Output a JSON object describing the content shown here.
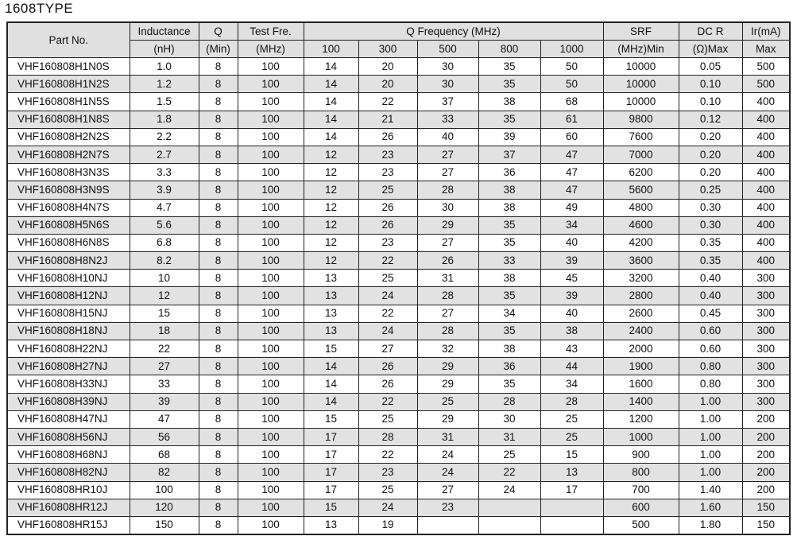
{
  "title": "1608TYPE",
  "headers": {
    "part_no": "Part No.",
    "inductance": [
      "Inductance",
      "(nH)"
    ],
    "q": [
      "Q",
      "(Min)"
    ],
    "test_freq": [
      "Test Fre.",
      "(MHz)"
    ],
    "q_frequency": "Q Frequency (MHz)",
    "q_freq_cols": [
      "100",
      "300",
      "500",
      "800",
      "1000"
    ],
    "srf": [
      "SRF",
      "(MHz)Min"
    ],
    "dcr": [
      "DC R",
      "(Ω)Max"
    ],
    "ir": [
      "Ir(mA)",
      "Max"
    ]
  },
  "rows": [
    [
      "VHF160808H1N0S",
      "1.0",
      "8",
      "100",
      "14",
      "20",
      "30",
      "35",
      "50",
      "10000",
      "0.05",
      "500"
    ],
    [
      "VHF160808H1N2S",
      "1.2",
      "8",
      "100",
      "14",
      "20",
      "30",
      "35",
      "50",
      "10000",
      "0.10",
      "500"
    ],
    [
      "VHF160808H1N5S",
      "1.5",
      "8",
      "100",
      "14",
      "22",
      "37",
      "38",
      "68",
      "10000",
      "0.10",
      "400"
    ],
    [
      "VHF160808H1N8S",
      "1.8",
      "8",
      "100",
      "14",
      "21",
      "33",
      "35",
      "61",
      "9800",
      "0.12",
      "400"
    ],
    [
      "VHF160808H2N2S",
      "2.2",
      "8",
      "100",
      "14",
      "26",
      "40",
      "39",
      "60",
      "7600",
      "0.20",
      "400"
    ],
    [
      "VHF160808H2N7S",
      "2.7",
      "8",
      "100",
      "12",
      "23",
      "27",
      "37",
      "47",
      "7000",
      "0.20",
      "400"
    ],
    [
      "VHF160808H3N3S",
      "3.3",
      "8",
      "100",
      "12",
      "23",
      "27",
      "36",
      "47",
      "6200",
      "0.20",
      "400"
    ],
    [
      "VHF160808H3N9S",
      "3.9",
      "8",
      "100",
      "12",
      "25",
      "28",
      "38",
      "47",
      "5600",
      "0.25",
      "400"
    ],
    [
      "VHF160808H4N7S",
      "4.7",
      "8",
      "100",
      "12",
      "26",
      "30",
      "38",
      "49",
      "4800",
      "0.30",
      "400"
    ],
    [
      "VHF160808H5N6S",
      "5.6",
      "8",
      "100",
      "12",
      "26",
      "29",
      "35",
      "34",
      "4600",
      "0.30",
      "400"
    ],
    [
      "VHF160808H6N8S",
      "6.8",
      "8",
      "100",
      "12",
      "23",
      "27",
      "35",
      "40",
      "4200",
      "0.35",
      "400"
    ],
    [
      "VHF160808H8N2J",
      "8.2",
      "8",
      "100",
      "12",
      "22",
      "26",
      "33",
      "39",
      "3600",
      "0.35",
      "400"
    ],
    [
      "VHF160808H10NJ",
      "10",
      "8",
      "100",
      "13",
      "25",
      "31",
      "38",
      "45",
      "3200",
      "0.40",
      "300"
    ],
    [
      "VHF160808H12NJ",
      "12",
      "8",
      "100",
      "13",
      "24",
      "28",
      "35",
      "39",
      "2800",
      "0.40",
      "300"
    ],
    [
      "VHF160808H15NJ",
      "15",
      "8",
      "100",
      "13",
      "22",
      "27",
      "34",
      "40",
      "2600",
      "0.45",
      "300"
    ],
    [
      "VHF160808H18NJ",
      "18",
      "8",
      "100",
      "13",
      "24",
      "28",
      "35",
      "38",
      "2400",
      "0.60",
      "300"
    ],
    [
      "VHF160808H22NJ",
      "22",
      "8",
      "100",
      "15",
      "27",
      "32",
      "38",
      "43",
      "2000",
      "0.60",
      "300"
    ],
    [
      "VHF160808H27NJ",
      "27",
      "8",
      "100",
      "14",
      "26",
      "29",
      "36",
      "44",
      "1900",
      "0.80",
      "300"
    ],
    [
      "VHF160808H33NJ",
      "33",
      "8",
      "100",
      "14",
      "26",
      "29",
      "35",
      "34",
      "1600",
      "0.80",
      "300"
    ],
    [
      "VHF160808H39NJ",
      "39",
      "8",
      "100",
      "14",
      "22",
      "25",
      "28",
      "28",
      "1400",
      "1.00",
      "300"
    ],
    [
      "VHF160808H47NJ",
      "47",
      "8",
      "100",
      "15",
      "25",
      "29",
      "30",
      "25",
      "1200",
      "1.00",
      "200"
    ],
    [
      "VHF160808H56NJ",
      "56",
      "8",
      "100",
      "17",
      "28",
      "31",
      "31",
      "25",
      "1000",
      "1.00",
      "200"
    ],
    [
      "VHF160808H68NJ",
      "68",
      "8",
      "100",
      "17",
      "22",
      "24",
      "25",
      "15",
      "900",
      "1.00",
      "200"
    ],
    [
      "VHF160808H82NJ",
      "82",
      "8",
      "100",
      "17",
      "23",
      "24",
      "22",
      "13",
      "800",
      "1.00",
      "200"
    ],
    [
      "VHF160808HR10J",
      "100",
      "8",
      "100",
      "17",
      "25",
      "27",
      "24",
      "17",
      "700",
      "1.40",
      "200"
    ],
    [
      "VHF160808HR12J",
      "120",
      "8",
      "100",
      "15",
      "24",
      "23",
      "",
      "",
      "600",
      "1.60",
      "150"
    ],
    [
      "VHF160808HR15J",
      "150",
      "8",
      "100",
      "13",
      "19",
      "",
      "",
      "",
      "500",
      "1.80",
      "150"
    ]
  ]
}
